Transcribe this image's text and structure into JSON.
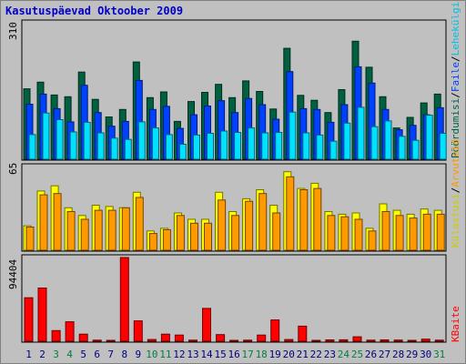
{
  "title": "Kasutuspäevad Oktoober 2009",
  "colors": {
    "frame_bg": "#c0c0c0",
    "plot_bg": "#c0c0c0",
    "title": "#0000cc",
    "hits": "#006040",
    "files": "#0040ff",
    "pages": "#00e0ff",
    "visits": "#ffff00",
    "sites": "#ff9900",
    "kbytes": "#ff0000",
    "weekend_label": "#008040",
    "weekday_label": "#000080"
  },
  "chart_data": [
    {
      "type": "bar",
      "panel": "top",
      "ymax_label": "310",
      "ylim": [
        0,
        310
      ],
      "categories": [
        "1",
        "2",
        "3",
        "4",
        "5",
        "6",
        "7",
        "8",
        "9",
        "10",
        "11",
        "12",
        "13",
        "14",
        "15",
        "16",
        "17",
        "18",
        "19",
        "20",
        "21",
        "22",
        "23",
        "24",
        "25",
        "26",
        "27",
        "28",
        "29",
        "30",
        "31"
      ],
      "series": [
        {
          "name": "Pöördumisi",
          "color": "#006040",
          "values": [
            160,
            175,
            146,
            142,
            198,
            136,
            96,
            113,
            221,
            140,
            153,
            86,
            131,
            152,
            170,
            140,
            178,
            154,
            114,
            252,
            145,
            134,
            106,
            158,
            268,
            209,
            142,
            71,
            95,
            128,
            148
          ]
        },
        {
          "name": "Failid",
          "color": "#0040ff",
          "values": [
            125,
            148,
            115,
            85,
            168,
            106,
            75,
            86,
            179,
            113,
            120,
            70,
            101,
            121,
            133,
            106,
            138,
            124,
            91,
            199,
            115,
            113,
            84,
            124,
            210,
            173,
            113,
            67,
            77,
            101,
            117
          ]
        },
        {
          "name": "Lehekülgi",
          "color": "#00e0ff",
          "values": [
            56,
            105,
            90,
            62,
            84,
            60,
            48,
            45,
            85,
            71,
            56,
            34,
            55,
            59,
            64,
            61,
            71,
            60,
            61,
            107,
            60,
            55,
            41,
            82,
            118,
            74,
            87,
            52,
            43,
            100,
            59
          ]
        }
      ]
    },
    {
      "type": "bar",
      "panel": "middle",
      "ymax_label": "65",
      "ylim": [
        0,
        65
      ],
      "categories": [
        "1",
        "2",
        "3",
        "4",
        "5",
        "6",
        "7",
        "8",
        "9",
        "10",
        "11",
        "12",
        "13",
        "14",
        "15",
        "16",
        "17",
        "18",
        "19",
        "20",
        "21",
        "22",
        "23",
        "24",
        "25",
        "26",
        "27",
        "28",
        "29",
        "30",
        "31"
      ],
      "series": [
        {
          "name": "Külastusi",
          "color": "#ffff00",
          "values": [
            19,
            46,
            50,
            33,
            27,
            35,
            34,
            33,
            45,
            15,
            17,
            29,
            24,
            24,
            45,
            30,
            40,
            47,
            35,
            61,
            48,
            52,
            30,
            28,
            29,
            17,
            36,
            31,
            28,
            32,
            31
          ]
        },
        {
          "name": "Arvuteid",
          "color": "#ff9900",
          "values": [
            18,
            43,
            44,
            30,
            24,
            31,
            31,
            33,
            41,
            13,
            16,
            27,
            21,
            21,
            39,
            27,
            38,
            44,
            29,
            57,
            47,
            48,
            27,
            26,
            24,
            15,
            30,
            27,
            25,
            28,
            28
          ]
        }
      ]
    },
    {
      "type": "bar",
      "panel": "bottom",
      "ymax_label": "94404",
      "ylim": [
        0,
        94404
      ],
      "categories": [
        "1",
        "2",
        "3",
        "4",
        "5",
        "6",
        "7",
        "8",
        "9",
        "10",
        "11",
        "12",
        "13",
        "14",
        "15",
        "16",
        "17",
        "18",
        "19",
        "20",
        "21",
        "22",
        "23",
        "24",
        "25",
        "26",
        "27",
        "28",
        "29",
        "30",
        "31"
      ],
      "series": [
        {
          "name": "KBaite",
          "color": "#ff0000",
          "values": [
            49000,
            60000,
            12000,
            22000,
            8000,
            1200,
            1000,
            94404,
            23000,
            2000,
            8000,
            7000,
            1200,
            37000,
            7500,
            1000,
            1200,
            7000,
            24000,
            2000,
            17000,
            800,
            1500,
            1600,
            5000,
            1200,
            1500,
            1300,
            900,
            2400,
            1200
          ]
        }
      ]
    }
  ],
  "x_labels": [
    {
      "text": "1",
      "weekend": false
    },
    {
      "text": "2",
      "weekend": false
    },
    {
      "text": "3",
      "weekend": true
    },
    {
      "text": "4",
      "weekend": true
    },
    {
      "text": "5",
      "weekend": false
    },
    {
      "text": "6",
      "weekend": false
    },
    {
      "text": "7",
      "weekend": false
    },
    {
      "text": "8",
      "weekend": false
    },
    {
      "text": "9",
      "weekend": false
    },
    {
      "text": "10",
      "weekend": true
    },
    {
      "text": "11",
      "weekend": true
    },
    {
      "text": "12",
      "weekend": false
    },
    {
      "text": "13",
      "weekend": false
    },
    {
      "text": "14",
      "weekend": false
    },
    {
      "text": "15",
      "weekend": false
    },
    {
      "text": "16",
      "weekend": false
    },
    {
      "text": "17",
      "weekend": true
    },
    {
      "text": "18",
      "weekend": true
    },
    {
      "text": "19",
      "weekend": false
    },
    {
      "text": "20",
      "weekend": false
    },
    {
      "text": "21",
      "weekend": false
    },
    {
      "text": "22",
      "weekend": false
    },
    {
      "text": "23",
      "weekend": false
    },
    {
      "text": "24",
      "weekend": true
    },
    {
      "text": "25",
      "weekend": true
    },
    {
      "text": "26",
      "weekend": false
    },
    {
      "text": "27",
      "weekend": false
    },
    {
      "text": "28",
      "weekend": false
    },
    {
      "text": "29",
      "weekend": false
    },
    {
      "text": "30",
      "weekend": false
    },
    {
      "text": "31",
      "weekend": true
    }
  ],
  "legend_right": {
    "top": [
      {
        "text": "Pöördumisi",
        "color": "#006040"
      },
      {
        "text": "/",
        "color": "#000000"
      },
      {
        "text": "Faile",
        "color": "#0040ff"
      },
      {
        "text": "/",
        "color": "#000000"
      },
      {
        "text": "Lehekülgi",
        "color": "#00c0e0"
      }
    ],
    "middle": [
      {
        "text": "Külastusi",
        "color": "#cccc00"
      },
      {
        "text": "/",
        "color": "#000000"
      },
      {
        "text": "Arvuteid",
        "color": "#ff9900"
      }
    ],
    "bottom": [
      {
        "text": "KBaite",
        "color": "#ff0000"
      }
    ]
  }
}
